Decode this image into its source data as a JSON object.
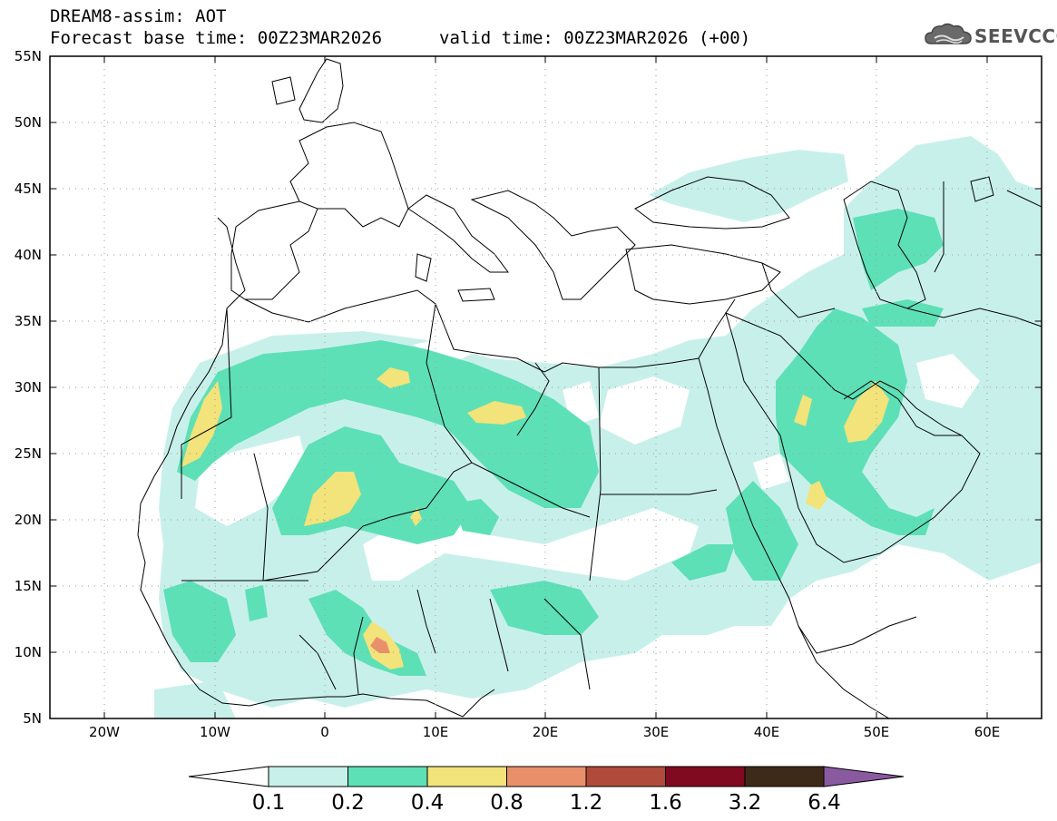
{
  "header": {
    "title": "DREAM8-assim: AOT",
    "base_time": "Forecast base time: 00Z23MAR2026",
    "valid_time": "valid time: 00Z23MAR2026 (+00)",
    "logo_text": "SEEVCCC"
  },
  "axes": {
    "lon_labels": [
      "20W",
      "10W",
      "0",
      "10E",
      "20E",
      "30E",
      "40E",
      "50E",
      "60E"
    ],
    "lat_labels": [
      "55N",
      "50N",
      "45N",
      "40N",
      "35N",
      "30N",
      "25N",
      "20N",
      "15N",
      "10N",
      "5N"
    ]
  },
  "colorbar": {
    "labels": [
      "0.1",
      "0.2",
      "0.4",
      "0.8",
      "1.2",
      "1.6",
      "3.2",
      "6.4"
    ],
    "colors": [
      "#c8f0ea",
      "#5ee0b6",
      "#f2e37a",
      "#e9906a",
      "#b04a3a",
      "#800a20",
      "#3e2a18",
      "#8a5aa0"
    ],
    "under_color": "#ffffff"
  },
  "icons": [
    "cloud-logo-icon"
  ]
}
